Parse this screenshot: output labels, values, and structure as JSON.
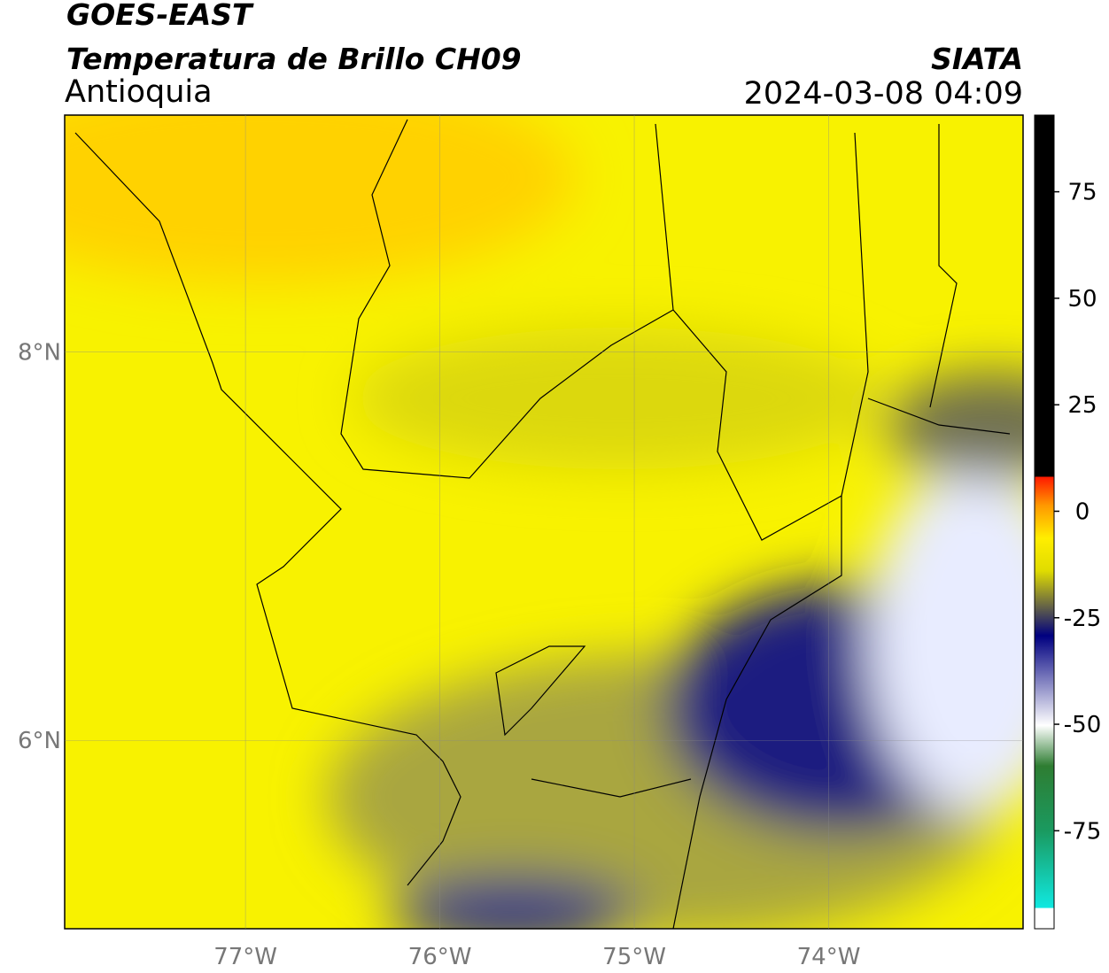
{
  "header": {
    "source": "GOES-EAST",
    "title": "Temperatura de Brillo CH09",
    "region": "Antioquia",
    "org": "SIATA",
    "datetime": "2024-03-08 04:09"
  },
  "map": {
    "xlim": [
      -77.93,
      -73.0
    ],
    "ylim": [
      5.03,
      9.22
    ],
    "xticks": [
      {
        "value": -77,
        "label": "77°W"
      },
      {
        "value": -76,
        "label": "76°W"
      },
      {
        "value": -75,
        "label": "75°W"
      },
      {
        "value": -74,
        "label": "74°W"
      }
    ],
    "yticks": [
      {
        "value": 8,
        "label": "8°N"
      },
      {
        "value": 6,
        "label": "6°N"
      }
    ]
  },
  "colorbar": {
    "clim": [
      -98,
      93
    ],
    "ticks": [
      75,
      50,
      25,
      0,
      -25,
      -50,
      -75
    ]
  }
}
